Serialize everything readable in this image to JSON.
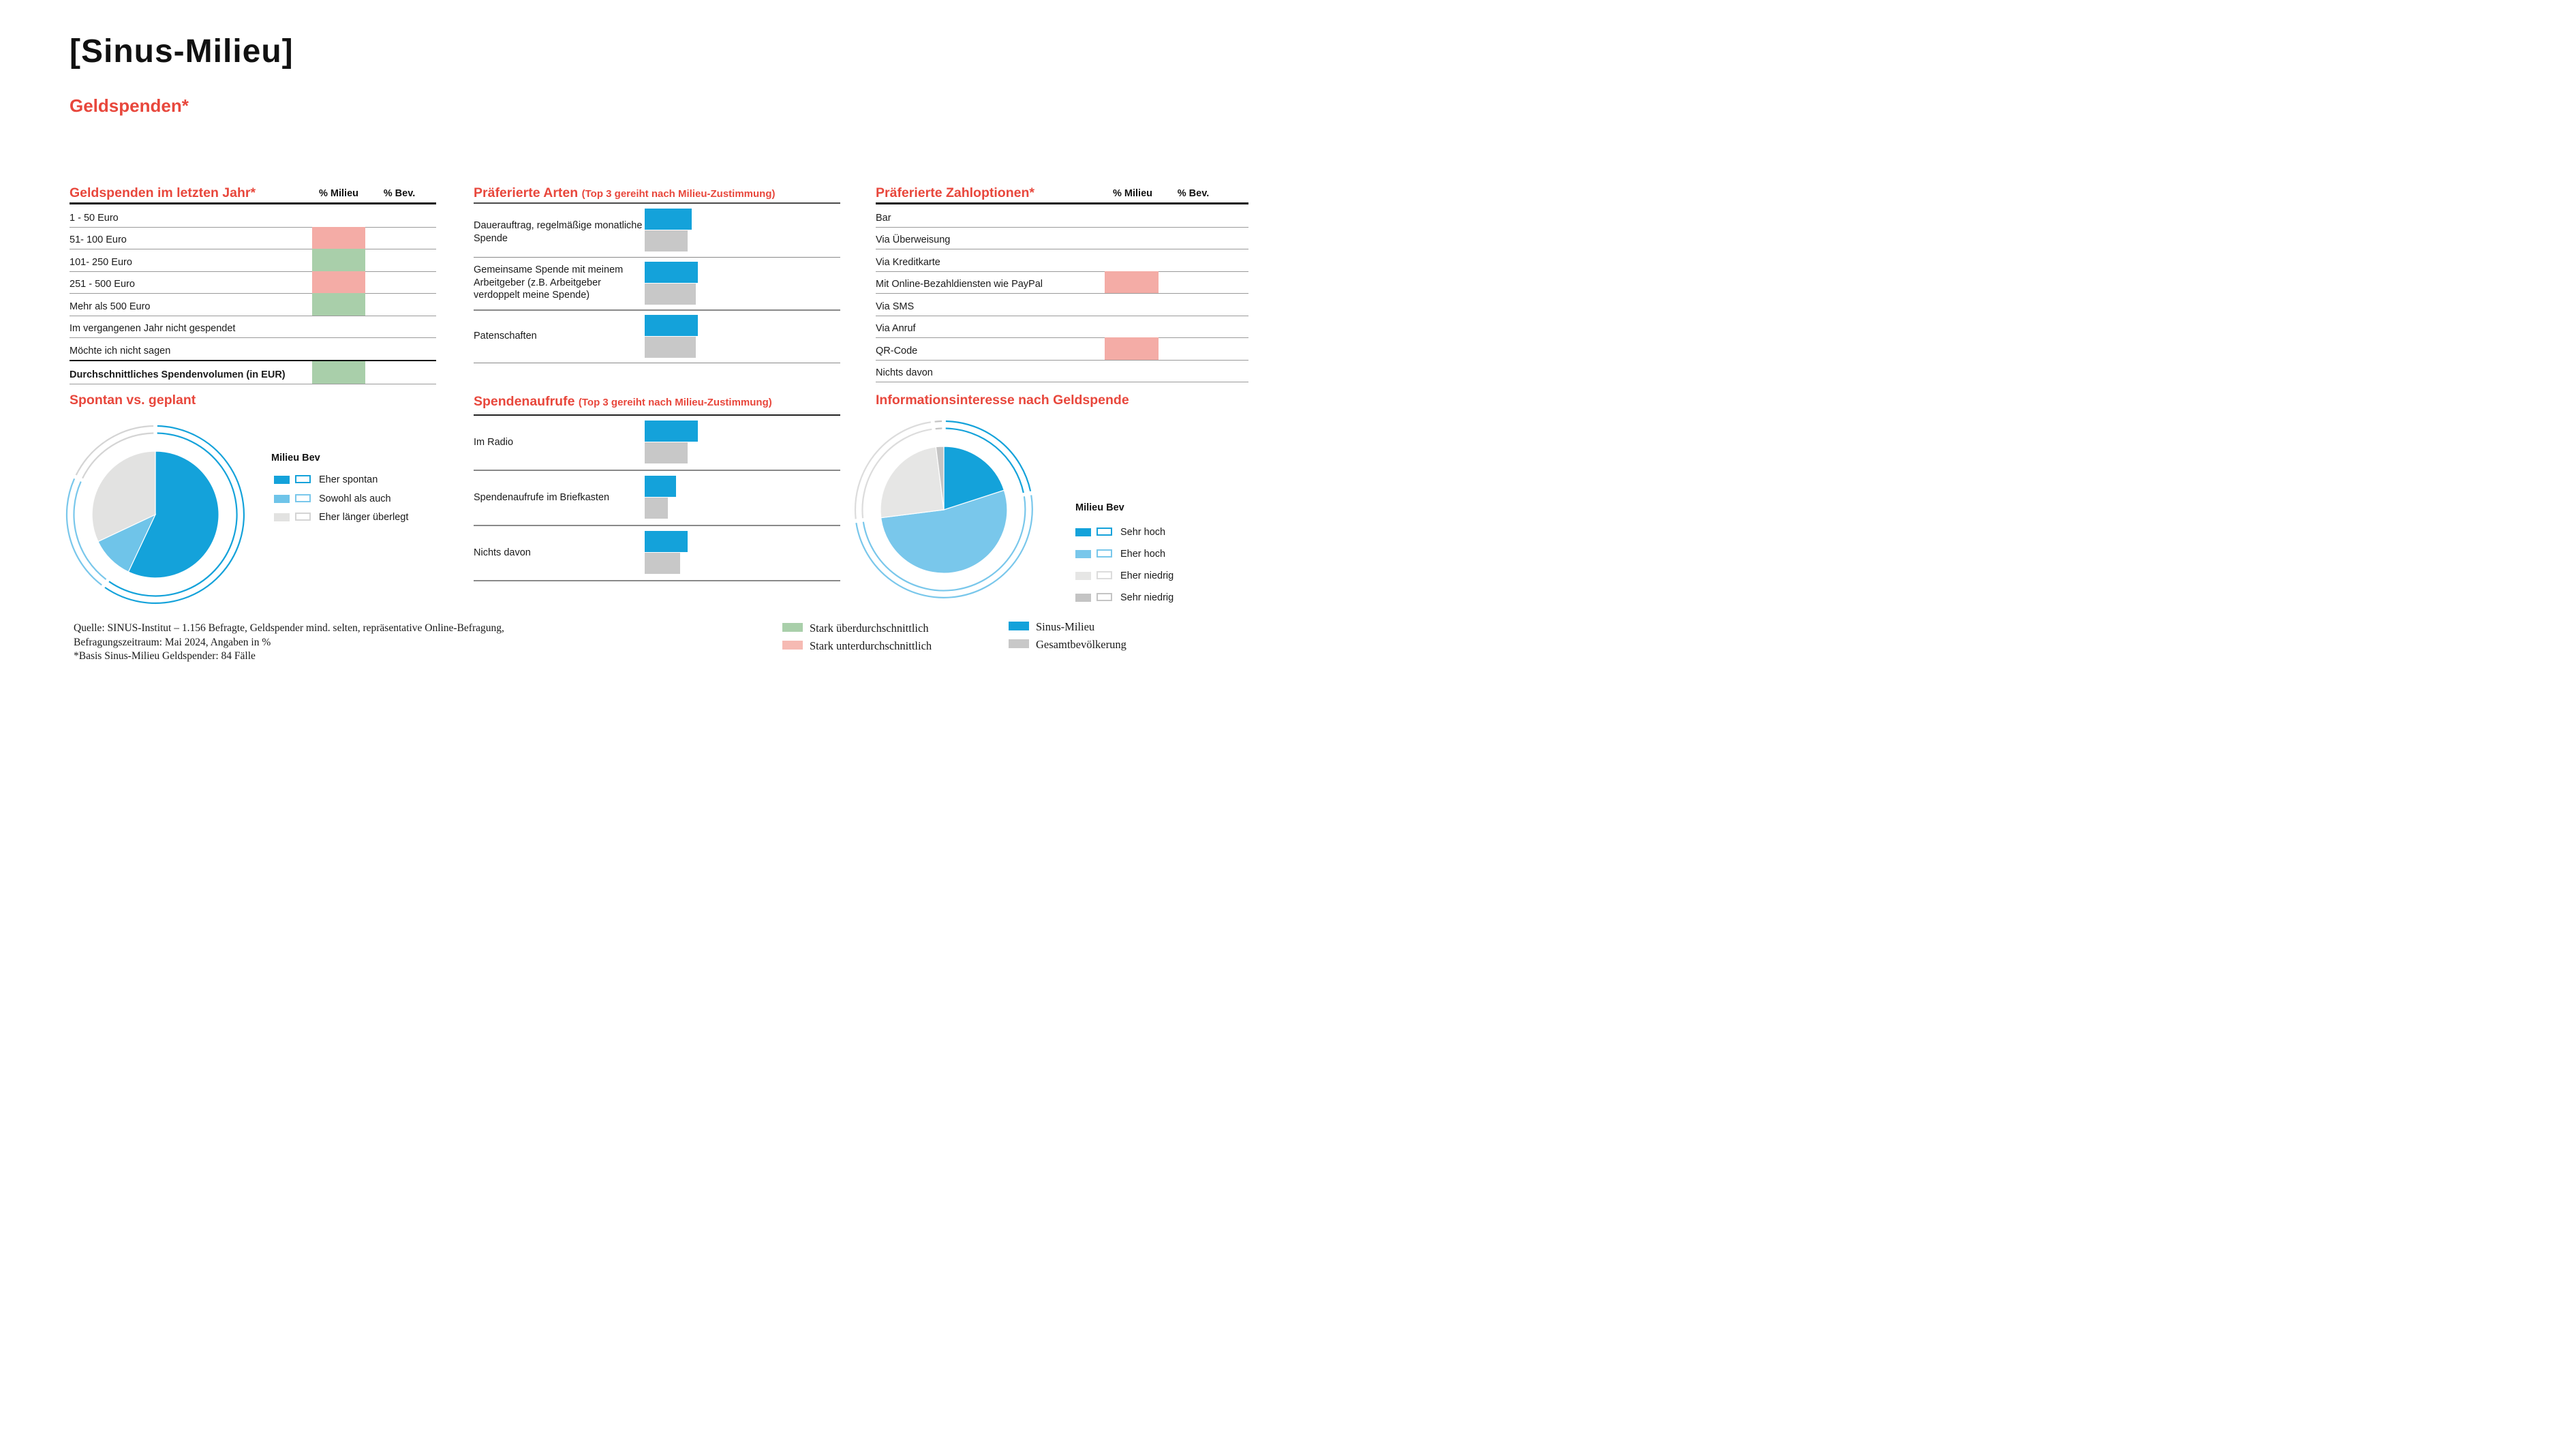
{
  "header": {
    "title": "[Sinus-Milieu]",
    "subtitle": "Geldspenden*"
  },
  "colors": {
    "stark_ueberdurchschnittlich": "#a9cfaa",
    "stark_unterdurchschnittlich": "#f4aca6",
    "milieu_blue": "#14a2da",
    "bev_gray": "#c8c8c8",
    "heading_red": "#e8473c"
  },
  "chart_data": [
    {
      "type": "table",
      "title": "Geldspenden im letzten Jahr*",
      "columns": [
        "% Milieu",
        "% Bev."
      ],
      "highlight_legend": [
        "Stark überdurchschnittlich",
        "Stark unterdurchschnittlich"
      ],
      "rows": [
        {
          "label": "1 - 50 Euro",
          "highlight": null
        },
        {
          "label": "51- 100 Euro",
          "highlight": "stark_unterdurchschnittlich"
        },
        {
          "label": "101- 250 Euro",
          "highlight": "stark_ueberdurchschnittlich"
        },
        {
          "label": "251 - 500 Euro",
          "highlight": "stark_unterdurchschnittlich"
        },
        {
          "label": "Mehr als 500 Euro",
          "highlight": "stark_ueberdurchschnittlich"
        },
        {
          "label": "Im vergangenen Jahr nicht gespendet",
          "highlight": null
        },
        {
          "label": "Möchte ich nicht sagen",
          "highlight": null
        },
        {
          "label": "Durchschnittliches Spendenvolumen (in EUR)",
          "highlight": "stark_ueberdurchschnittlich"
        }
      ]
    },
    {
      "type": "bar",
      "title": "Präferierte Arten",
      "subtitle": "(Top 3 gereiht nach Milieu-Zustimmung)",
      "series_names": [
        "Sinus-Milieu",
        "Gesamtbevölkerung"
      ],
      "categories": [
        "Dauerauftrag, regelmäßige monatliche Spende",
        "Gemeinsame Spende mit meinem Arbeitgeber (z.B. Arbeitgeber verdoppelt meine Spende)",
        "Patenschaften"
      ],
      "value_unit": "percent of bar track, visual estimate (no numeric labels printed)",
      "values": [
        [
          24,
          22
        ],
        [
          27,
          26
        ],
        [
          27,
          26
        ]
      ]
    },
    {
      "type": "table",
      "title": "Präferierte Zahloptionen*",
      "columns": [
        "% Milieu",
        "% Bev."
      ],
      "rows": [
        {
          "label": "Bar",
          "highlight": null
        },
        {
          "label": "Via Überweisung",
          "highlight": null
        },
        {
          "label": "Via Kreditkarte",
          "highlight": null
        },
        {
          "label": "Mit Online-Bezahldiensten wie PayPal",
          "highlight": "stark_unterdurchschnittlich"
        },
        {
          "label": "Via SMS",
          "highlight": null
        },
        {
          "label": "Via Anruf",
          "highlight": null
        },
        {
          "label": "QR-Code",
          "highlight": "stark_unterdurchschnittlich"
        },
        {
          "label": "Nichts davon",
          "highlight": null
        }
      ]
    },
    {
      "type": "pie",
      "title": "Spontan vs. geplant",
      "legend": {
        "milieu": "Milieu",
        "bev": "Bev"
      },
      "categories": [
        "Eher spontan",
        "Sowohl als auch",
        "Eher länger überlegt"
      ],
      "category_colors": [
        "#14a2da",
        "#6fc4e9",
        "#e2e2e1"
      ],
      "ring_colors": [
        "#14a2da",
        "#79c7eb",
        "#d4d4d4"
      ],
      "value_unit": "percent, visual estimate (no numeric labels printed)",
      "series": [
        {
          "name": "Sinus-Milieu (inner pie)",
          "values": [
            57,
            11,
            32
          ]
        },
        {
          "name": "Gesamtbevölkerung (outer ring)",
          "values": [
            60,
            22,
            18
          ]
        }
      ]
    },
    {
      "type": "bar",
      "title": "Spendenaufrufe",
      "subtitle": "(Top 3 gereiht nach Milieu-Zustimmung)",
      "series_names": [
        "Sinus-Milieu",
        "Gesamtbevölkerung"
      ],
      "categories": [
        "Im Radio",
        "Spendenaufrufe im Briefkasten",
        "Nichts davon"
      ],
      "value_unit": "percent of bar track, visual estimate (no numeric labels printed)",
      "values": [
        [
          27,
          22
        ],
        [
          16,
          12
        ],
        [
          22,
          18
        ]
      ]
    },
    {
      "type": "pie",
      "title": "Informationsinteresse nach Geldspende",
      "legend": {
        "milieu": "Milieu",
        "bev": "Bev"
      },
      "categories": [
        "Sehr hoch",
        "Eher hoch",
        "Eher niedrig",
        "Sehr niedrig"
      ],
      "category_colors": [
        "#14a2da",
        "#79c7eb",
        "#e6e6e5",
        "#c4c4c4"
      ],
      "ring_colors": [
        "#14a2da",
        "#79c7eb",
        "#dcdcdc",
        "#c4c4c4"
      ],
      "value_unit": "percent, visual estimate (no numeric labels printed)",
      "series": [
        {
          "name": "Sinus-Milieu (inner pie)",
          "values": [
            20,
            53,
            25,
            2
          ]
        },
        {
          "name": "Gesamtbevölkerung (outer ring)",
          "values": [
            22,
            51,
            25,
            2
          ]
        }
      ]
    }
  ],
  "footer": {
    "source_lines": [
      "Quelle: SINUS-Institut – 1.156 Befragte, Geldspender mind. selten, repräsentative Online-Befragung,",
      "Befragungszeitraum: Mai 2024, Angaben in %",
      "*Basis Sinus-Milieu Geldspender: 84 Fälle"
    ],
    "flag_legend": [
      {
        "label": "Stark überdurchschnittlich",
        "color": "#a9cfaa"
      },
      {
        "label": "Stark unterdurchschnittlich",
        "color": "#f6bab3"
      }
    ],
    "series_legend": [
      {
        "label": "Sinus-Milieu",
        "color": "#14a2da"
      },
      {
        "label": "Gesamtbevölkerung",
        "color": "#c8c8c8"
      }
    ]
  }
}
